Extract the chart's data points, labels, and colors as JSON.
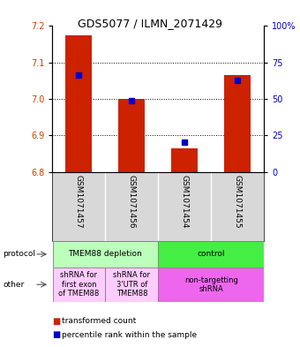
{
  "title": "GDS5077 / ILMN_2071429",
  "samples": [
    "GSM1071457",
    "GSM1071456",
    "GSM1071454",
    "GSM1071455"
  ],
  "bar_values": [
    7.175,
    7.0,
    6.865,
    7.065
  ],
  "bar_base": 6.8,
  "percentile_values": [
    7.065,
    6.995,
    6.882,
    7.052
  ],
  "ylim": [
    6.8,
    7.2
  ],
  "yticks_left": [
    6.8,
    6.9,
    7.0,
    7.1,
    7.2
  ],
  "yticks_right": [
    0,
    25,
    50,
    75,
    100
  ],
  "bar_color": "#cc2200",
  "percentile_color": "#0000cc",
  "protocol_row": [
    {
      "label": "TMEM88 depletion",
      "span": [
        0,
        2
      ],
      "color": "#bbffbb"
    },
    {
      "label": "control",
      "span": [
        2,
        4
      ],
      "color": "#44ee44"
    }
  ],
  "other_row": [
    {
      "label": "shRNA for\nfirst exon\nof TMEM88",
      "span": [
        0,
        1
      ],
      "color": "#ffccff"
    },
    {
      "label": "shRNA for\n3'UTR of\nTMEM88",
      "span": [
        1,
        2
      ],
      "color": "#ffccff"
    },
    {
      "label": "non-targetting\nshRNA",
      "span": [
        2,
        4
      ],
      "color": "#ee66ee"
    }
  ],
  "label_protocol": "protocol",
  "label_other": "other",
  "legend_red_label": "transformed count",
  "legend_blue_label": "percentile rank within the sample",
  "title_fontsize": 9,
  "tick_fontsize": 7,
  "sample_fontsize": 6.5,
  "annotation_fontsize": 6.5,
  "legend_fontsize": 6.5
}
